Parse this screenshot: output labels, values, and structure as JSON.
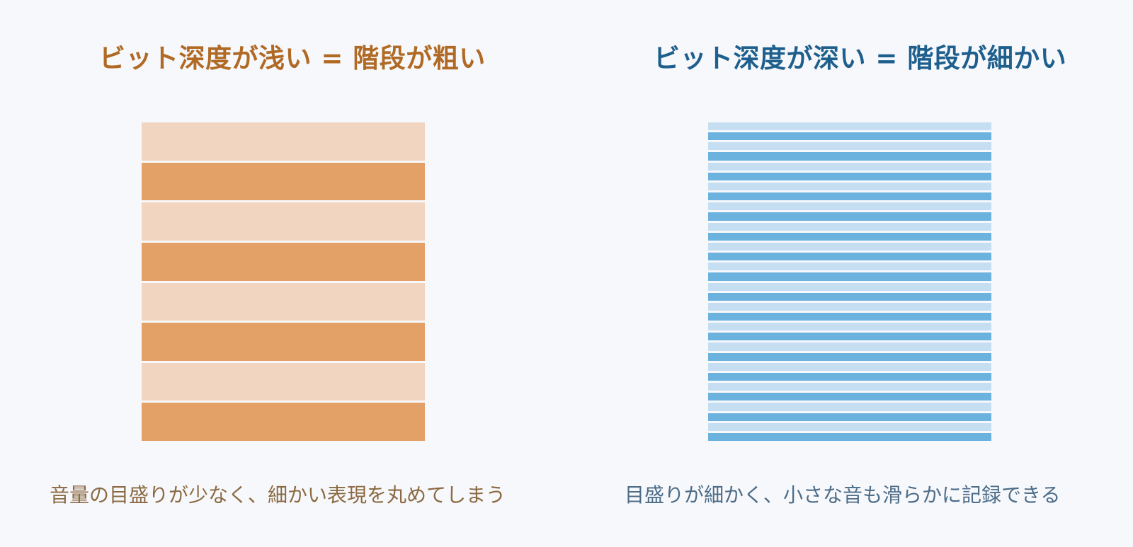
{
  "left_panel": {
    "title": "ビット深度が浅い = 階段が粗い",
    "caption": "音量の目盛りが少なく、細かい表現を丸めてしまう",
    "steps": 8,
    "colors": {
      "title": "#b06a25",
      "light": "#f2d5c0",
      "dark": "#e4a167",
      "caption": "#8b6a43"
    }
  },
  "right_panel": {
    "title": "ビット深度が深い = 階段が細かい",
    "caption": "目盛りが細かく、小さな音も滑らかに記録できる",
    "steps": 32,
    "colors": {
      "title": "#1e5f8d",
      "light": "#c5def2",
      "dark": "#6cb2df",
      "caption": "#4c6c88"
    }
  },
  "background": "#f7f8fb"
}
